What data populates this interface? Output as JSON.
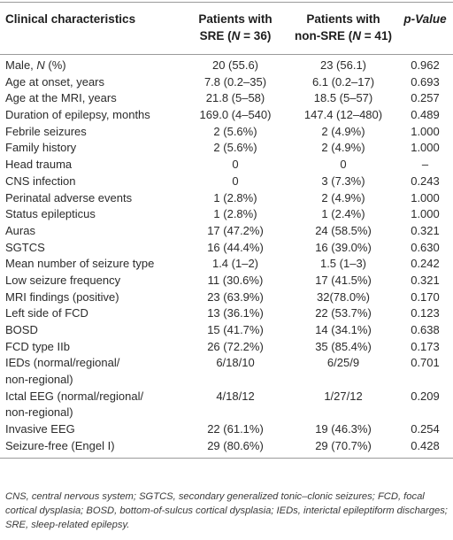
{
  "header": {
    "col0": "Clinical characteristics",
    "col1_line1": "Patients with",
    "col1_line2": "SRE (N = 36)",
    "col2_line1": "Patients with",
    "col2_line2": "non-SRE (N = 41)",
    "col3": "p-Value"
  },
  "rows": [
    {
      "label": "Male, N (%)",
      "sre": "20 (55.6)",
      "nonsre": "23 (56.1)",
      "p": "0.962"
    },
    {
      "label": "Age at onset, years",
      "sre": "7.8 (0.2–35)",
      "nonsre": "6.1 (0.2–17)",
      "p": "0.693"
    },
    {
      "label": "Age at the MRI, years",
      "sre": "21.8 (5–58)",
      "nonsre": "18.5 (5–57)",
      "p": "0.257"
    },
    {
      "label": "Duration of epilepsy, months",
      "sre": "169.0 (4–540)",
      "nonsre": "147.4 (12–480)",
      "p": "0.489"
    },
    {
      "label": "Febrile seizures",
      "sre": "2 (5.6%)",
      "nonsre": "2 (4.9%)",
      "p": "1.000"
    },
    {
      "label": "Family history",
      "sre": "2 (5.6%)",
      "nonsre": "2 (4.9%)",
      "p": "1.000"
    },
    {
      "label": "Head trauma",
      "sre": "0",
      "nonsre": "0",
      "p": "–"
    },
    {
      "label": "CNS infection",
      "sre": "0",
      "nonsre": "3 (7.3%)",
      "p": "0.243"
    },
    {
      "label": "Perinatal adverse events",
      "sre": "1 (2.8%)",
      "nonsre": "2 (4.9%)",
      "p": "1.000"
    },
    {
      "label": "Status epilepticus",
      "sre": "1 (2.8%)",
      "nonsre": "1 (2.4%)",
      "p": "1.000"
    },
    {
      "label": "Auras",
      "sre": "17 (47.2%)",
      "nonsre": "24 (58.5%)",
      "p": "0.321"
    },
    {
      "label": "SGTCS",
      "sre": "16 (44.4%)",
      "nonsre": "16 (39.0%)",
      "p": "0.630"
    },
    {
      "label": "Mean number of seizure type",
      "sre": "1.4 (1–2)",
      "nonsre": "1.5 (1–3)",
      "p": "0.242"
    },
    {
      "label": "Low seizure frequency",
      "sre": "11 (30.6%)",
      "nonsre": "17 (41.5%)",
      "p": "0.321"
    },
    {
      "label": "MRI findings (positive)",
      "sre": "23 (63.9%)",
      "nonsre": "32(78.0%)",
      "p": "0.170"
    },
    {
      "label": "Left side of FCD",
      "sre": "13 (36.1%)",
      "nonsre": "22 (53.7%)",
      "p": "0.123"
    },
    {
      "label": "BOSD",
      "sre": "15 (41.7%)",
      "nonsre": "14 (34.1%)",
      "p": "0.638"
    },
    {
      "label": "FCD type IIb",
      "sre": "26 (72.2%)",
      "nonsre": "35 (85.4%)",
      "p": "0.173"
    }
  ],
  "multi_rows": [
    {
      "label1": "IEDs (normal/regional/",
      "label2": "non-regional)",
      "sre": "6/18/10",
      "nonsre": "6/25/9",
      "p": "0.701"
    },
    {
      "label1": "Ictal EEG (normal/regional/",
      "label2": "non-regional)",
      "sre": "4/18/12",
      "nonsre": "1/27/12",
      "p": "0.209"
    }
  ],
  "tail_rows": [
    {
      "label": "Invasive EEG",
      "sre": "22 (61.1%)",
      "nonsre": "19 (46.3%)",
      "p": "0.254"
    },
    {
      "label": "Seizure-free (Engel I)",
      "sre": "29 (80.6%)",
      "nonsre": "29 (70.7%)",
      "p": "0.428"
    }
  ],
  "footnote": "CNS, central nervous system; SGTCS, secondary generalized tonic–clonic seizures; FCD, focal cortical dysplasia; BOSD, bottom-of-sulcus cortical dysplasia; IEDs, interictal epileptiform discharges; SRE, sleep-related epilepsy."
}
